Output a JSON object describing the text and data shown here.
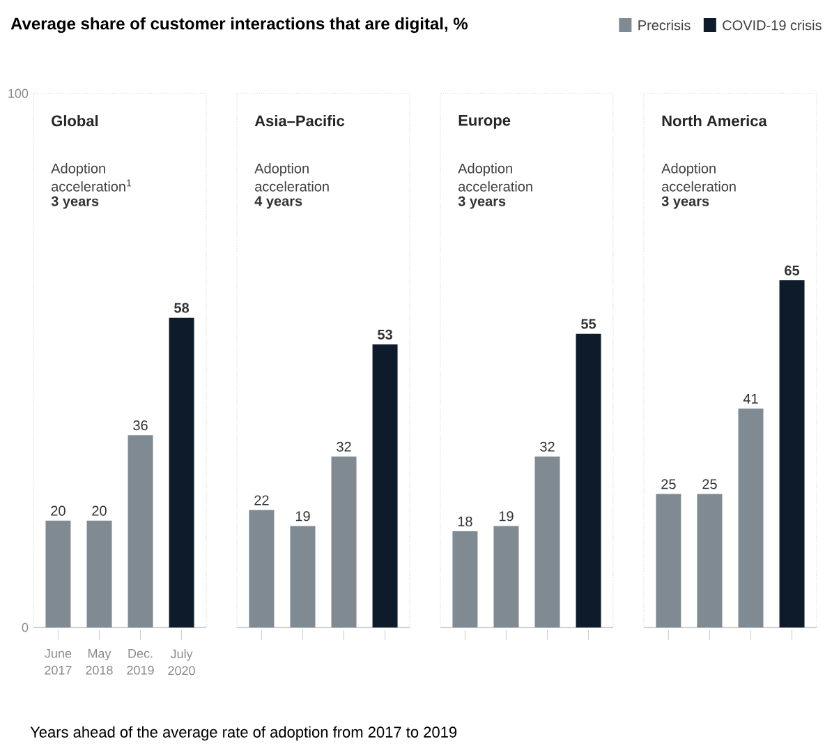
{
  "chart_data": [
    {
      "type": "bar",
      "title": "Global",
      "annotations": [
        "Adoption acceleration$^{1}$",
        "3 years",
        "Average share of customer interactions that are digital, %",
        "Years ahead of the average rate of adoption from 2017 to 2019"
      ],
      "categories": [
        "June 2017",
        "May 2018",
        "Dec. 2019",
        "July 2020"
      ],
      "series": [
        {
          "name": "Precrisis",
          "color": "#7f8a93",
          "values": [
            20,
            20,
            36,
            null
          ]
        },
        {
          "name": "COVID-19 crisis",
          "color": "#0d1b2a",
          "values": [
            null,
            null,
            null,
            58
          ]
        }
      ],
      "ylim": [
        0,
        100
      ],
      "yticks": [
        0,
        100
      ],
      "data_labels": true,
      "legend": "top right"
    },
    {
      "type": "bar",
      "title": "Asia–Pacific",
      "annotations": [
        "Adoption acceleration",
        "4 years"
      ],
      "categories": [
        null,
        null,
        null,
        null
      ],
      "values": [
        22,
        19,
        32,
        53
      ],
      "colors": [
        "#7f8a93",
        "#7f8a93",
        "#7f8a93",
        "#0d1b2a"
      ],
      "data_labels": true
    },
    {
      "type": "bar",
      "title": "Europe",
      "annotations": [
        "Adoption acceleration",
        "3 years"
      ],
      "categories": [
        null,
        null,
        null,
        null
      ],
      "values": [
        18,
        19,
        32,
        55
      ],
      "colors": [
        "#7f8a93",
        "#7f8a93",
        "#7f8a93",
        "#0d1b2a"
      ],
      "data_labels": true
    },
    {
      "type": "bar",
      "title": "North America",
      "annotations": [
        "Adoption acceleration",
        "3 years"
      ],
      "categories": [
        null,
        null,
        null,
        null
      ],
      "values": [
        25,
        25,
        41,
        65
      ],
      "colors": [
        "#7f8a93",
        "#7f8a93",
        "#7f8a93",
        "#0d1b2a"
      ],
      "data_labels": true
    }
  ]
}
